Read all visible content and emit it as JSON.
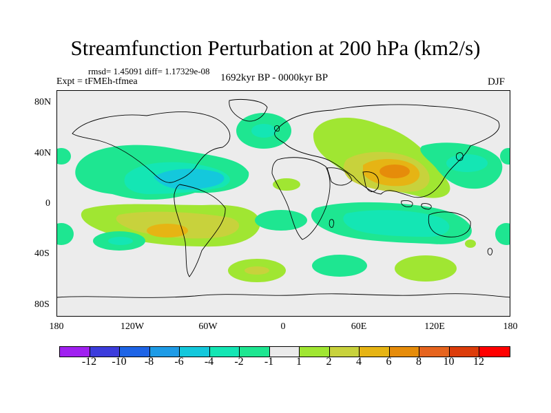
{
  "title": "Streamfunction Perturbation at 200 hPa (km2/s)",
  "stats": "rmsd= 1.45091 diff= 1.17329e-08",
  "experiment": "Expt = tFMEh-tfmea",
  "period": "1692kyr BP - 0000kyr BP",
  "season": "DJF",
  "lat_labels": [
    "80N",
    "40N",
    "0",
    "40S",
    "80S"
  ],
  "lon_labels": [
    "180",
    "120W",
    "60W",
    "0",
    "60E",
    "120E",
    "180"
  ],
  "colorbar": {
    "levels": [
      "-12",
      "-10",
      "-8",
      "-6",
      "-4",
      "-2",
      "-1",
      "1",
      "2",
      "4",
      "6",
      "8",
      "10",
      "12"
    ],
    "colors": [
      "#a020f0",
      "#3c3cdc",
      "#1e64e6",
      "#1e9be6",
      "#14c8dc",
      "#14e6b4",
      "#1ee691",
      "#ebebeb",
      "#a0e632",
      "#c8d23c",
      "#e6b414",
      "#e68c0a",
      "#e6641e",
      "#dc3c0a",
      "#ff0000"
    ]
  },
  "map_colors": {
    "ocean_bg": "#ececec",
    "coastline": "#000000",
    "positive_1": "#a0e632",
    "positive_2": "#c8d23c",
    "positive_4": "#e6b414",
    "positive_6": "#e68c0a",
    "negative_1": "#1ee691",
    "negative_2": "#14e6b4",
    "negative_4": "#14c8dc"
  }
}
